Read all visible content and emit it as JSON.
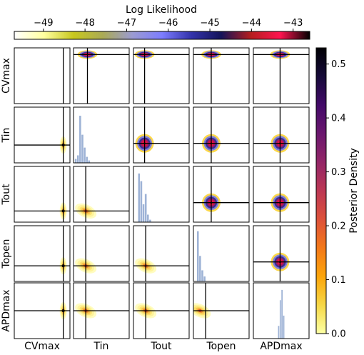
{
  "chart_data": {
    "type": "corner-plot",
    "parameters": [
      "CVmax",
      "Tin",
      "Tout",
      "Topen",
      "APDmax"
    ],
    "loglik_colorbar": {
      "label": "Log Likelihood",
      "ticks": [
        -49,
        -48,
        -47,
        -46,
        -45,
        -44,
        -43
      ],
      "range": [
        -49.7,
        -42.6
      ],
      "colormap": [
        "#ffffff",
        "#ffffa0",
        "#c8c81e",
        "#aaaa55",
        "#9b9bd2",
        "#7d7dff",
        "#3232aa",
        "#14145a",
        "#b41e1e",
        "#ff1450",
        "#000000"
      ]
    },
    "posterior_colorbar": {
      "label": "Posterior Density",
      "ticks": [
        0.0,
        0.1,
        0.2,
        0.3,
        0.4,
        0.5
      ],
      "range": [
        0.0,
        0.53
      ],
      "colormap": [
        "#fcffa4",
        "#f6d746",
        "#fca50a",
        "#f37819",
        "#dd513a",
        "#bc3754",
        "#932667",
        "#6a176e",
        "#420a68",
        "#160b39",
        "#000004"
      ]
    },
    "true_values_frac": [
      0.88,
      0.2,
      0.22,
      0.1,
      0.5
    ],
    "upper_max_frac": [
      0.2,
      0.25,
      0.2,
      0.32,
      0.48
    ],
    "diagonal_histograms": [
      {
        "param": "CVmax",
        "bins": [
          [
            0.875,
            0.885,
            0.12
          ]
        ]
      },
      {
        "param": "Tin",
        "bins": [
          [
            0.02,
            0.06,
            0.08
          ],
          [
            0.06,
            0.1,
            0.15
          ],
          [
            0.1,
            0.14,
            0.92
          ],
          [
            0.14,
            0.18,
            0.55
          ],
          [
            0.18,
            0.22,
            0.3
          ],
          [
            0.22,
            0.26,
            0.12
          ],
          [
            0.26,
            0.3,
            0.05
          ]
        ]
      },
      {
        "param": "Tout",
        "bins": [
          [
            0.08,
            0.12,
            0.95
          ],
          [
            0.12,
            0.16,
            0.8
          ],
          [
            0.16,
            0.2,
            0.35
          ],
          [
            0.2,
            0.24,
            0.55
          ],
          [
            0.24,
            0.28,
            0.15
          ],
          [
            0.28,
            0.32,
            0.05
          ]
        ]
      },
      {
        "param": "Topen",
        "bins": [
          [
            0.06,
            0.1,
            0.98
          ],
          [
            0.1,
            0.14,
            0.5
          ],
          [
            0.14,
            0.18,
            0.22
          ],
          [
            0.18,
            0.22,
            0.1
          ]
        ]
      },
      {
        "param": "APDmax",
        "bins": [
          [
            0.44,
            0.47,
            0.25
          ],
          [
            0.47,
            0.5,
            0.75
          ],
          [
            0.5,
            0.53,
            0.95
          ],
          [
            0.53,
            0.56,
            0.45
          ]
        ]
      }
    ]
  }
}
